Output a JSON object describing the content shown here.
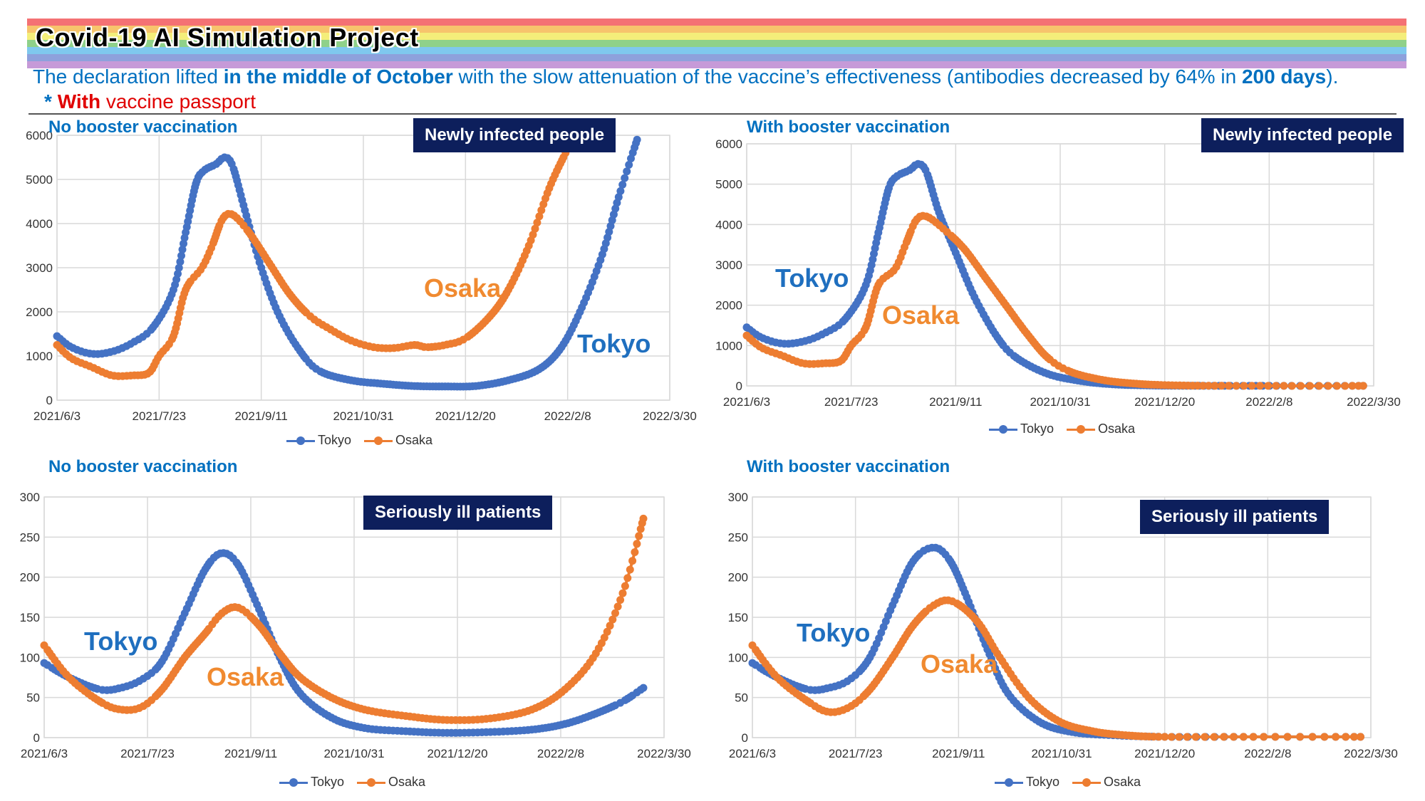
{
  "header": {
    "title": "Covid-19 AI Simulation Project",
    "subtitle_parts": [
      {
        "text": "The declaration lifted ",
        "bold": false
      },
      {
        "text": "in the middle of October",
        "bold": true
      },
      {
        "text": " with the slow attenuation of the vaccine’s effectiveness (antibodies decreased by 64% in ",
        "bold": false
      },
      {
        "text": "200 days",
        "bold": true
      },
      {
        "text": ").",
        "bold": false
      }
    ],
    "note_star": "*",
    "note_bold": "With",
    "note_rest": " vaccine passport",
    "rainbow_colors": [
      "#f47174",
      "#f7c46c",
      "#f4ee7a",
      "#8fd18a",
      "#7fc8ee",
      "#8ea1dc",
      "#c69ad8"
    ]
  },
  "colors": {
    "tokyo": "#4472c4",
    "osaka": "#ed7d31",
    "tokyo_label": "#1f6fbf",
    "osaka_label": "#f08a30",
    "box": "#0d1f5c",
    "panel_label": "#0070c0"
  },
  "chart_data": [
    {
      "type": "scatter",
      "panel_label": "No booster vaccination",
      "box_label": "Newly infected people",
      "city_labels": {
        "tokyo": "Tokyo",
        "osaka": "Osaka"
      },
      "legend": [
        "Tokyo",
        "Osaka"
      ],
      "legend_placement": "bottom",
      "x_tick_labels": [
        "2021/6/3",
        "2021/7/23",
        "2021/9/11",
        "2021/10/31",
        "2021/12/20",
        "2022/2/8",
        "2022/3/30"
      ],
      "xlim": [
        "2021/6/3",
        "2022/3/30"
      ],
      "x_unit": "day",
      "ylim": [
        0,
        6000
      ],
      "y_ticks": [
        0,
        1000,
        2000,
        3000,
        4000,
        5000,
        6000
      ],
      "grid": true,
      "series": [
        {
          "name": "Tokyo",
          "points": [
            [
              "2021/6/3",
              1450
            ],
            [
              "2021/6/10",
              1200
            ],
            [
              "2021/6/20",
              1050
            ],
            [
              "2021/6/30",
              1100
            ],
            [
              "2021/7/10",
              1300
            ],
            [
              "2021/7/20",
              1650
            ],
            [
              "2021/7/30",
              2500
            ],
            [
              "2021/8/5",
              3800
            ],
            [
              "2021/8/10",
              4900
            ],
            [
              "2021/8/14",
              5200
            ],
            [
              "2021/8/20",
              5350
            ],
            [
              "2021/8/24",
              5500
            ],
            [
              "2021/8/28",
              5300
            ],
            [
              "2021/9/3",
              4300
            ],
            [
              "2021/9/11",
              3000
            ],
            [
              "2021/9/20",
              1900
            ],
            [
              "2021/10/1",
              1050
            ],
            [
              "2021/10/10",
              650
            ],
            [
              "2021/10/25",
              450
            ],
            [
              "2021/11/10",
              370
            ],
            [
              "2021/11/25",
              320
            ],
            [
              "2021/12/10",
              310
            ],
            [
              "2021/12/25",
              320
            ],
            [
              "2022/1/10",
              450
            ],
            [
              "2022/1/25",
              700
            ],
            [
              "2022/2/5",
              1200
            ],
            [
              "2022/2/15",
              2100
            ],
            [
              "2022/2/25",
              3300
            ],
            [
              "2022/3/5",
              4600
            ],
            [
              "2022/3/14",
              5900
            ]
          ]
        },
        {
          "name": "Osaka",
          "points": [
            [
              "2021/6/3",
              1250
            ],
            [
              "2021/6/10",
              950
            ],
            [
              "2021/6/20",
              750
            ],
            [
              "2021/6/30",
              560
            ],
            [
              "2021/7/10",
              560
            ],
            [
              "2021/7/18",
              620
            ],
            [
              "2021/7/23",
              1000
            ],
            [
              "2021/7/30",
              1450
            ],
            [
              "2021/8/5",
              2500
            ],
            [
              "2021/8/13",
              3000
            ],
            [
              "2021/8/18",
              3500
            ],
            [
              "2021/8/23",
              4100
            ],
            [
              "2021/8/28",
              4200
            ],
            [
              "2021/9/5",
              3800
            ],
            [
              "2021/9/15",
              3100
            ],
            [
              "2021/9/25",
              2400
            ],
            [
              "2021/10/5",
              1900
            ],
            [
              "2021/10/15",
              1600
            ],
            [
              "2021/10/25",
              1350
            ],
            [
              "2021/11/5",
              1200
            ],
            [
              "2021/11/15",
              1180
            ],
            [
              "2021/11/25",
              1250
            ],
            [
              "2021/12/1",
              1200
            ],
            [
              "2021/12/10",
              1250
            ],
            [
              "2021/12/20",
              1400
            ],
            [
              "2022/1/1",
              1900
            ],
            [
              "2022/1/10",
              2500
            ],
            [
              "2022/1/20",
              3500
            ],
            [
              "2022/1/30",
              4800
            ],
            [
              "2022/2/7",
              5600
            ]
          ]
        }
      ]
    },
    {
      "type": "scatter",
      "panel_label": "With booster vaccination",
      "box_label": "Newly infected people",
      "city_labels": {
        "tokyo": "Tokyo",
        "osaka": "Osaka"
      },
      "legend": [
        "Tokyo",
        "Osaka"
      ],
      "legend_placement": "bottom",
      "x_tick_labels": [
        "2021/6/3",
        "2021/7/23",
        "2021/9/11",
        "2021/10/31",
        "2021/12/20",
        "2022/2/8",
        "2022/3/30"
      ],
      "xlim": [
        "2021/6/3",
        "2022/3/30"
      ],
      "x_unit": "day",
      "ylim": [
        0,
        6000
      ],
      "y_ticks": [
        0,
        1000,
        2000,
        3000,
        4000,
        5000,
        6000
      ],
      "grid": true,
      "series": [
        {
          "name": "Tokyo",
          "points": [
            [
              "2021/6/3",
              1450
            ],
            [
              "2021/6/10",
              1200
            ],
            [
              "2021/6/20",
              1050
            ],
            [
              "2021/6/30",
              1100
            ],
            [
              "2021/7/10",
              1300
            ],
            [
              "2021/7/20",
              1650
            ],
            [
              "2021/7/30",
              2500
            ],
            [
              "2021/8/5",
              3800
            ],
            [
              "2021/8/10",
              4900
            ],
            [
              "2021/8/14",
              5200
            ],
            [
              "2021/8/20",
              5350
            ],
            [
              "2021/8/24",
              5500
            ],
            [
              "2021/8/28",
              5300
            ],
            [
              "2021/9/3",
              4300
            ],
            [
              "2021/9/11",
              3300
            ],
            [
              "2021/9/20",
              2200
            ],
            [
              "2021/10/1",
              1200
            ],
            [
              "2021/10/10",
              700
            ],
            [
              "2021/10/25",
              300
            ],
            [
              "2021/11/10",
              120
            ],
            [
              "2021/11/25",
              40
            ],
            [
              "2021/12/10",
              15
            ],
            [
              "2021/12/25",
              5
            ],
            [
              "2022/1/15",
              2
            ],
            [
              "2022/2/15",
              1
            ],
            [
              "2022/3/25",
              1
            ]
          ]
        },
        {
          "name": "Osaka",
          "points": [
            [
              "2021/6/3",
              1250
            ],
            [
              "2021/6/10",
              950
            ],
            [
              "2021/6/20",
              750
            ],
            [
              "2021/6/30",
              560
            ],
            [
              "2021/7/10",
              560
            ],
            [
              "2021/7/18",
              620
            ],
            [
              "2021/7/23",
              1000
            ],
            [
              "2021/7/30",
              1450
            ],
            [
              "2021/8/5",
              2500
            ],
            [
              "2021/8/13",
              2900
            ],
            [
              "2021/8/18",
              3500
            ],
            [
              "2021/8/23",
              4100
            ],
            [
              "2021/8/28",
              4200
            ],
            [
              "2021/9/5",
              3900
            ],
            [
              "2021/9/15",
              3400
            ],
            [
              "2021/9/25",
              2700
            ],
            [
              "2021/10/5",
              2000
            ],
            [
              "2021/10/15",
              1300
            ],
            [
              "2021/10/25",
              700
            ],
            [
              "2021/11/5",
              350
            ],
            [
              "2021/11/20",
              150
            ],
            [
              "2021/12/5",
              60
            ],
            [
              "2021/12/20",
              20
            ],
            [
              "2022/1/10",
              5
            ],
            [
              "2022/2/15",
              1
            ],
            [
              "2022/3/25",
              1
            ]
          ]
        }
      ]
    },
    {
      "type": "scatter",
      "panel_label": "No booster vaccination",
      "box_label": "Seriously ill patients",
      "city_labels": {
        "tokyo": "Tokyo",
        "osaka": "Osaka"
      },
      "legend": [
        "Tokyo",
        "Osaka"
      ],
      "legend_placement": "bottom",
      "x_tick_labels": [
        "2021/6/3",
        "2021/7/23",
        "2021/9/11",
        "2021/10/31",
        "2021/12/20",
        "2022/2/8",
        "2022/3/30"
      ],
      "xlim": [
        "2021/6/3",
        "2022/3/30"
      ],
      "x_unit": "day",
      "ylim": [
        0,
        300
      ],
      "y_ticks": [
        0,
        50,
        100,
        150,
        200,
        250,
        300
      ],
      "grid": true,
      "series": [
        {
          "name": "Tokyo",
          "points": [
            [
              "2021/6/3",
              93
            ],
            [
              "2021/6/15",
              75
            ],
            [
              "2021/6/30",
              60
            ],
            [
              "2021/7/10",
              62
            ],
            [
              "2021/7/20",
              72
            ],
            [
              "2021/7/30",
              95
            ],
            [
              "2021/8/10",
              155
            ],
            [
              "2021/8/20",
              210
            ],
            [
              "2021/8/28",
              230
            ],
            [
              "2021/9/5",
              215
            ],
            [
              "2021/9/15",
              160
            ],
            [
              "2021/9/25",
              100
            ],
            [
              "2021/10/5",
              55
            ],
            [
              "2021/10/20",
              25
            ],
            [
              "2021/11/5",
              12
            ],
            [
              "2021/11/25",
              8
            ],
            [
              "2021/12/15",
              6
            ],
            [
              "2022/1/5",
              7
            ],
            [
              "2022/1/25",
              10
            ],
            [
              "2022/2/10",
              17
            ],
            [
              "2022/2/25",
              30
            ],
            [
              "2022/3/10",
              45
            ],
            [
              "2022/3/20",
              62
            ]
          ]
        },
        {
          "name": "Osaka",
          "points": [
            [
              "2021/6/3",
              115
            ],
            [
              "2021/6/15",
              75
            ],
            [
              "2021/6/30",
              45
            ],
            [
              "2021/7/10",
              35
            ],
            [
              "2021/7/20",
              38
            ],
            [
              "2021/7/30",
              60
            ],
            [
              "2021/8/10",
              100
            ],
            [
              "2021/8/20",
              130
            ],
            [
              "2021/8/28",
              155
            ],
            [
              "2021/9/5",
              162
            ],
            [
              "2021/9/15",
              140
            ],
            [
              "2021/9/25",
              105
            ],
            [
              "2021/10/5",
              75
            ],
            [
              "2021/10/20",
              50
            ],
            [
              "2021/11/5",
              35
            ],
            [
              "2021/11/25",
              27
            ],
            [
              "2021/12/15",
              22
            ],
            [
              "2022/1/5",
              24
            ],
            [
              "2022/1/25",
              35
            ],
            [
              "2022/2/10",
              60
            ],
            [
              "2022/2/25",
              105
            ],
            [
              "2022/3/10",
              180
            ],
            [
              "2022/3/20",
              273
            ]
          ]
        }
      ]
    },
    {
      "type": "scatter",
      "panel_label": "With booster vaccination",
      "box_label": "Seriously ill patients",
      "city_labels": {
        "tokyo": "Tokyo",
        "osaka": "Osaka"
      },
      "legend": [
        "Tokyo",
        "Osaka"
      ],
      "legend_placement": "bottom",
      "x_tick_labels": [
        "2021/6/3",
        "2021/7/23",
        "2021/9/11",
        "2021/10/31",
        "2021/12/20",
        "2022/2/8",
        "2022/3/30"
      ],
      "xlim": [
        "2021/6/3",
        "2022/3/30"
      ],
      "x_unit": "day",
      "ylim": [
        0,
        300
      ],
      "y_ticks": [
        0,
        50,
        100,
        150,
        200,
        250,
        300
      ],
      "grid": true,
      "series": [
        {
          "name": "Tokyo",
          "points": [
            [
              "2021/6/3",
              93
            ],
            [
              "2021/6/15",
              75
            ],
            [
              "2021/6/30",
              60
            ],
            [
              "2021/7/10",
              62
            ],
            [
              "2021/7/20",
              72
            ],
            [
              "2021/7/30",
              100
            ],
            [
              "2021/8/10",
              165
            ],
            [
              "2021/8/20",
              220
            ],
            [
              "2021/8/30",
              237
            ],
            [
              "2021/9/7",
              220
            ],
            [
              "2021/9/15",
              175
            ],
            [
              "2021/9/25",
              110
            ],
            [
              "2021/10/5",
              55
            ],
            [
              "2021/10/20",
              20
            ],
            [
              "2021/11/5",
              7
            ],
            [
              "2021/11/25",
              3
            ],
            [
              "2021/12/20",
              1
            ],
            [
              "2022/2/1",
              1
            ],
            [
              "2022/3/25",
              1
            ]
          ]
        },
        {
          "name": "Osaka",
          "points": [
            [
              "2021/6/3",
              115
            ],
            [
              "2021/6/15",
              75
            ],
            [
              "2021/6/30",
              45
            ],
            [
              "2021/7/10",
              32
            ],
            [
              "2021/7/20",
              38
            ],
            [
              "2021/7/30",
              60
            ],
            [
              "2021/8/10",
              100
            ],
            [
              "2021/8/20",
              140
            ],
            [
              "2021/8/30",
              165
            ],
            [
              "2021/9/8",
              170
            ],
            [
              "2021/9/20",
              145
            ],
            [
              "2021/10/1",
              100
            ],
            [
              "2021/10/15",
              50
            ],
            [
              "2021/10/30",
              20
            ],
            [
              "2021/11/15",
              8
            ],
            [
              "2021/12/1",
              3
            ],
            [
              "2021/12/20",
              1
            ],
            [
              "2022/2/1",
              1
            ],
            [
              "2022/3/25",
              1
            ]
          ]
        }
      ]
    }
  ]
}
